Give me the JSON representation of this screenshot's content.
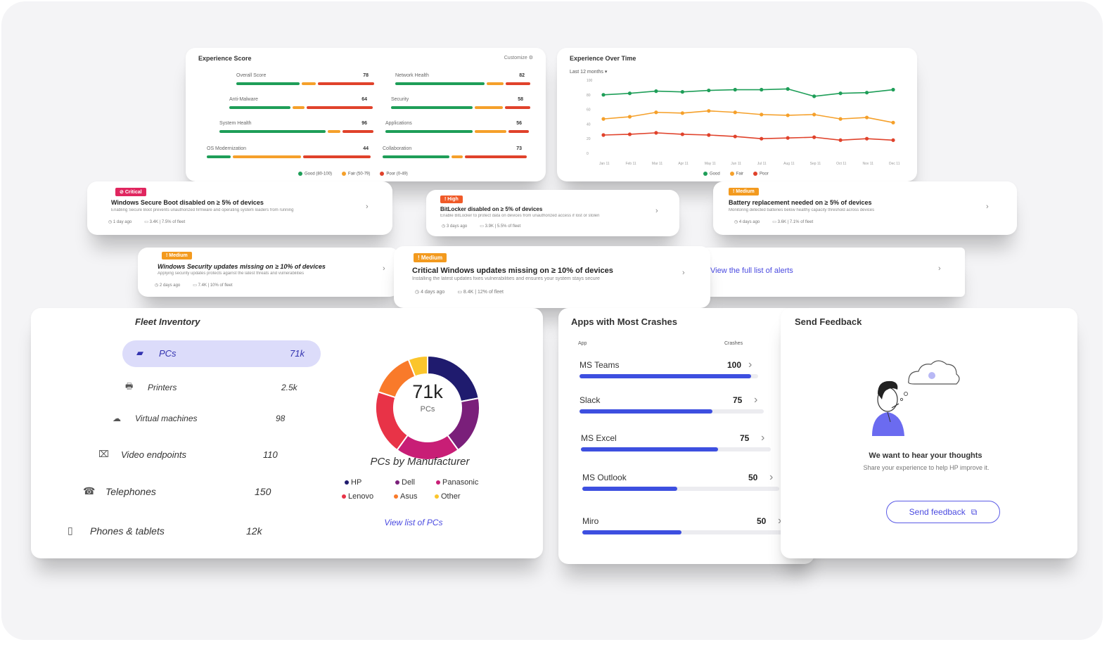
{
  "experience_score": {
    "title": "Experience Score",
    "header_right": "Customize",
    "metrics": [
      {
        "label": "Overall Score",
        "value": "78"
      },
      {
        "label": "Network Health",
        "value": "82"
      },
      {
        "label": "Anti-Malware",
        "value": "64"
      },
      {
        "label": "Security",
        "value": "58"
      },
      {
        "label": "System Health",
        "value": "96"
      },
      {
        "label": "Applications",
        "value": "56"
      },
      {
        "label": "OS Modernization",
        "value": "44"
      },
      {
        "label": "Collaboration",
        "value": "73"
      }
    ],
    "legend": [
      {
        "label": "Good (80-100)",
        "color": "#1e9e58"
      },
      {
        "label": "Fair (50-79)",
        "color": "#f5a02a"
      },
      {
        "label": "Poor (0-49)",
        "color": "#e0422b"
      }
    ]
  },
  "experience_over_time": {
    "title": "Experience Over Time",
    "filter_label": "Last 12 months",
    "chart_data": {
      "type": "line",
      "title": "Experience Over Time",
      "x": [
        "Jan 11",
        "Feb 11",
        "Mar 11",
        "Apr 11",
        "May 11",
        "Jun 11",
        "Jul 11",
        "Aug 11",
        "Sep 11",
        "Oct 11",
        "Nov 11",
        "Dec 11"
      ],
      "ylim": [
        0,
        100
      ],
      "yticks": [
        "100",
        "80",
        "60",
        "40",
        "20",
        "0"
      ],
      "series": [
        {
          "name": "Good",
          "color": "#1e9e58",
          "values": [
            80,
            82,
            85,
            84,
            86,
            87,
            87,
            88,
            78,
            82,
            83,
            87
          ]
        },
        {
          "name": "Fair",
          "color": "#f5a02a",
          "values": [
            47,
            50,
            56,
            55,
            58,
            56,
            53,
            52,
            53,
            47,
            49,
            42
          ]
        },
        {
          "name": "Poor",
          "color": "#e0422b",
          "values": [
            25,
            26,
            28,
            26,
            25,
            23,
            20,
            21,
            22,
            18,
            20,
            18
          ]
        }
      ]
    },
    "legend": [
      {
        "label": "Good",
        "color": "#1e9e58"
      },
      {
        "label": "Fair",
        "color": "#f5a02a"
      },
      {
        "label": "Poor",
        "color": "#e0422b"
      }
    ]
  },
  "alerts": [
    {
      "badge": "Critical",
      "badge_color": "#e0265f",
      "title": "Windows Secure Boot disabled on ≥ 5% of devices",
      "desc": "Enabling Secure Boot prevents unauthorized firmware and operating system loaders from running",
      "time": "1 day ago",
      "devices": "3.4K | 7.5% of fleet"
    },
    {
      "badge": "High",
      "badge_color": "#f05a28",
      "title": "BitLocker disabled on ≥ 5% of devices",
      "desc": "Enable BitLocker to protect data on devices from unauthorized access if lost or stolen",
      "time": "3 days ago",
      "devices": "3.9K | 5.5% of fleet"
    },
    {
      "badge": "Medium",
      "badge_color": "#f39a1e",
      "title": "Battery replacement needed on ≥ 5% of devices",
      "desc": "Monitoring detected batteries below healthy capacity threshold across devices",
      "time": "4 days ago",
      "devices": "3.6K | 7.1% of fleet"
    },
    {
      "badge": "Medium",
      "badge_color": "#f39a1e",
      "title": "Windows Security updates missing on ≥ 10% of devices",
      "desc": "Applying security updates protects against the latest threats and vulnerabilities",
      "time": "2 days ago",
      "devices": "7.4K | 10% of fleet"
    },
    {
      "badge": "Medium",
      "badge_color": "#f39a1e",
      "title": "Critical Windows updates missing on ≥ 10% of devices",
      "desc": "Installing the latest updates fixes vulnerabilities and ensures your system stays secure",
      "time": "4 days ago",
      "devices": "8.4K | 12% of fleet"
    }
  ],
  "alerts_link": "View the full list of alerts",
  "fleet_inventory": {
    "title": "Fleet Inventory",
    "items": [
      {
        "label": "PCs",
        "count": "71k",
        "icon": "laptop-icon"
      },
      {
        "label": "Printers",
        "count": "2.5k",
        "icon": "printer-icon"
      },
      {
        "label": "Virtual machines",
        "count": "98",
        "icon": "cloud-icon"
      },
      {
        "label": "Video endpoints",
        "count": "110",
        "icon": "video-endpoint-icon"
      },
      {
        "label": "Telephones",
        "count": "150",
        "icon": "telephone-icon"
      },
      {
        "label": "Phones & tablets",
        "count": "12k",
        "icon": "tablet-icon"
      }
    ],
    "donut": {
      "center_value": "71k",
      "center_label": "PCs",
      "title": "PCs by Manufacturer",
      "chart_data": {
        "type": "pie",
        "title": "PCs by Manufacturer",
        "categories": [
          "HP",
          "Dell",
          "Panasonic",
          "Lenovo",
          "Asus",
          "Other"
        ],
        "values": [
          22,
          18,
          20,
          20,
          14,
          6
        ],
        "colors": [
          "#1f1b6e",
          "#7a1f7a",
          "#c81e76",
          "#e83347",
          "#f97a2a",
          "#fbc52c"
        ]
      }
    },
    "link": "View list of PCs"
  },
  "apps_crashes": {
    "title": "Apps with Most Crashes",
    "col_app": "App",
    "col_crashes": "Crashes",
    "apps": [
      {
        "name": "MS Teams",
        "crashes": "100",
        "value": 100
      },
      {
        "name": "Slack",
        "crashes": "75",
        "value": 75
      },
      {
        "name": "MS Excel",
        "crashes": "75",
        "value": 75
      },
      {
        "name": "MS Outlook",
        "crashes": "50",
        "value": 50
      },
      {
        "name": "Miro",
        "crashes": "50",
        "value": 50
      }
    ],
    "max": 100
  },
  "feedback": {
    "title": "Send Feedback",
    "heading": "We want to hear your thoughts",
    "desc": "Share your experience to help HP improve it.",
    "button": "Send feedback"
  }
}
